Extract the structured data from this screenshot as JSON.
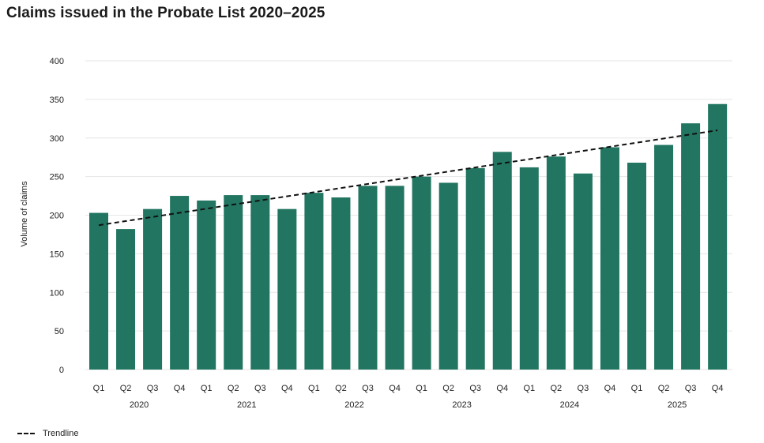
{
  "title": "Claims issued in the Probate List 2020–2025",
  "colors": {
    "bar": "#217561",
    "trend": "#111111",
    "grid": "#e6e6e6"
  },
  "chart_data": {
    "type": "bar",
    "title": "Claims issued in the Probate List 2020–2025",
    "xlabel": "",
    "ylabel": "Volume of claims",
    "ylim": [
      0,
      400
    ],
    "yticks": [
      0,
      50,
      100,
      150,
      200,
      250,
      300,
      350,
      400
    ],
    "grid": true,
    "categories": [
      "Q1",
      "Q2",
      "Q3",
      "Q4",
      "Q1",
      "Q2",
      "Q3",
      "Q4",
      "Q1",
      "Q2",
      "Q3",
      "Q4",
      "Q1",
      "Q2",
      "Q3",
      "Q4",
      "Q1",
      "Q2",
      "Q3",
      "Q4",
      "Q1",
      "Q2",
      "Q3",
      "Q4"
    ],
    "groups": [
      {
        "label": "2020",
        "count": 4
      },
      {
        "label": "2021",
        "count": 4
      },
      {
        "label": "2022",
        "count": 4
      },
      {
        "label": "2023",
        "count": 4
      },
      {
        "label": "2024",
        "count": 4
      },
      {
        "label": "2025",
        "count": 4
      }
    ],
    "values": [
      203,
      182,
      208,
      225,
      219,
      226,
      226,
      208,
      229,
      223,
      238,
      238,
      250,
      242,
      261,
      282,
      262,
      276,
      254,
      288,
      268,
      291,
      319,
      344
    ],
    "trendline": {
      "name": "Trendline",
      "start": 187,
      "end": 310
    },
    "legend": {
      "position": "bottom-left",
      "entries": [
        "Trendline"
      ]
    }
  }
}
